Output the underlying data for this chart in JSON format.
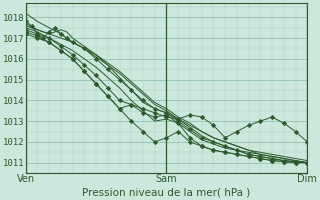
{
  "title": "Pression niveau de la mer( hPa )",
  "bg_color": "#cce8dc",
  "grid_color_major": "#88bbaa",
  "grid_color_minor": "#aaccbb",
  "line_color": "#2d5a2d",
  "marker_color": "#2d5a2d",
  "ylim": [
    1010.5,
    1018.7
  ],
  "xlim": [
    0,
    48
  ],
  "yticks": [
    1011,
    1012,
    1013,
    1014,
    1015,
    1016,
    1017,
    1018
  ],
  "xtick_positions": [
    0,
    24,
    48
  ],
  "xtick_labels": [
    "Ven",
    "Sam",
    "Dim"
  ],
  "series": [
    {
      "pts": [
        [
          0,
          1018.2
        ],
        [
          2,
          1017.8
        ],
        [
          4,
          1017.5
        ],
        [
          6,
          1017.2
        ],
        [
          8,
          1016.8
        ],
        [
          10,
          1016.5
        ],
        [
          12,
          1016.1
        ],
        [
          14,
          1015.7
        ],
        [
          16,
          1015.3
        ],
        [
          18,
          1014.8
        ],
        [
          20,
          1014.3
        ],
        [
          22,
          1013.8
        ],
        [
          24,
          1013.5
        ],
        [
          26,
          1013.1
        ],
        [
          28,
          1012.7
        ],
        [
          30,
          1012.3
        ],
        [
          32,
          1012.0
        ],
        [
          34,
          1011.8
        ],
        [
          36,
          1011.6
        ],
        [
          38,
          1011.4
        ],
        [
          40,
          1011.3
        ],
        [
          42,
          1011.2
        ],
        [
          44,
          1011.1
        ],
        [
          46,
          1011.05
        ],
        [
          48,
          1011.0
        ]
      ],
      "marker": false
    },
    {
      "pts": [
        [
          0,
          1017.7
        ],
        [
          2,
          1017.4
        ],
        [
          4,
          1017.2
        ],
        [
          6,
          1017.0
        ],
        [
          8,
          1016.8
        ],
        [
          10,
          1016.5
        ],
        [
          12,
          1016.2
        ],
        [
          14,
          1015.8
        ],
        [
          16,
          1015.4
        ],
        [
          18,
          1014.9
        ],
        [
          20,
          1014.4
        ],
        [
          22,
          1013.9
        ],
        [
          24,
          1013.6
        ],
        [
          26,
          1013.2
        ],
        [
          28,
          1012.9
        ],
        [
          30,
          1012.5
        ],
        [
          32,
          1012.2
        ],
        [
          34,
          1012.0
        ],
        [
          36,
          1011.8
        ],
        [
          38,
          1011.6
        ],
        [
          40,
          1011.4
        ],
        [
          42,
          1011.3
        ],
        [
          44,
          1011.2
        ],
        [
          46,
          1011.1
        ],
        [
          48,
          1011.0
        ]
      ],
      "marker": false
    },
    {
      "pts": [
        [
          0,
          1017.8
        ],
        [
          1,
          1017.6
        ],
        [
          2,
          1017.2
        ],
        [
          3,
          1017.0
        ],
        [
          4,
          1017.3
        ],
        [
          5,
          1017.5
        ],
        [
          6,
          1017.2
        ],
        [
          7,
          1017.0
        ],
        [
          8,
          1016.8
        ],
        [
          10,
          1016.5
        ],
        [
          12,
          1016.0
        ],
        [
          14,
          1015.5
        ],
        [
          16,
          1015.0
        ],
        [
          18,
          1014.5
        ],
        [
          20,
          1014.0
        ],
        [
          22,
          1013.6
        ],
        [
          24,
          1013.4
        ],
        [
          26,
          1013.0
        ],
        [
          28,
          1012.6
        ],
        [
          30,
          1012.2
        ],
        [
          32,
          1012.0
        ],
        [
          34,
          1011.8
        ],
        [
          36,
          1011.6
        ],
        [
          38,
          1011.4
        ],
        [
          40,
          1011.3
        ],
        [
          42,
          1011.2
        ],
        [
          44,
          1011.1
        ],
        [
          46,
          1011.05
        ],
        [
          48,
          1011.0
        ]
      ],
      "marker": true
    },
    {
      "pts": [
        [
          0,
          1017.6
        ],
        [
          2,
          1017.4
        ],
        [
          4,
          1017.2
        ],
        [
          5,
          1017.3
        ],
        [
          6,
          1017.4
        ],
        [
          7,
          1017.3
        ],
        [
          8,
          1017.0
        ],
        [
          10,
          1016.6
        ],
        [
          12,
          1016.2
        ],
        [
          14,
          1015.7
        ],
        [
          16,
          1015.1
        ],
        [
          18,
          1014.5
        ],
        [
          20,
          1013.9
        ],
        [
          22,
          1013.6
        ],
        [
          24,
          1013.4
        ],
        [
          26,
          1013.1
        ],
        [
          28,
          1012.8
        ],
        [
          30,
          1012.5
        ],
        [
          32,
          1012.2
        ],
        [
          34,
          1012.0
        ],
        [
          36,
          1011.8
        ],
        [
          38,
          1011.6
        ],
        [
          40,
          1011.5
        ],
        [
          42,
          1011.4
        ],
        [
          44,
          1011.3
        ],
        [
          46,
          1011.2
        ],
        [
          48,
          1011.1
        ]
      ],
      "marker": false
    },
    {
      "pts": [
        [
          0,
          1017.5
        ],
        [
          2,
          1017.3
        ],
        [
          4,
          1017.0
        ],
        [
          6,
          1016.7
        ],
        [
          8,
          1016.4
        ],
        [
          10,
          1016.0
        ],
        [
          12,
          1015.6
        ],
        [
          14,
          1015.1
        ],
        [
          16,
          1014.6
        ],
        [
          18,
          1014.0
        ],
        [
          20,
          1013.5
        ],
        [
          22,
          1013.0
        ],
        [
          24,
          1013.1
        ],
        [
          26,
          1012.9
        ],
        [
          28,
          1012.5
        ],
        [
          30,
          1012.1
        ],
        [
          32,
          1011.9
        ],
        [
          34,
          1011.7
        ],
        [
          36,
          1011.6
        ],
        [
          38,
          1011.5
        ],
        [
          40,
          1011.4
        ],
        [
          42,
          1011.3
        ],
        [
          44,
          1011.2
        ],
        [
          46,
          1011.1
        ],
        [
          48,
          1011.0
        ]
      ],
      "marker": false
    },
    {
      "pts": [
        [
          0,
          1017.4
        ],
        [
          2,
          1017.2
        ],
        [
          4,
          1017.0
        ],
        [
          6,
          1016.6
        ],
        [
          8,
          1016.2
        ],
        [
          10,
          1015.7
        ],
        [
          12,
          1015.2
        ],
        [
          14,
          1014.6
        ],
        [
          16,
          1014.0
        ],
        [
          18,
          1013.8
        ],
        [
          20,
          1013.4
        ],
        [
          22,
          1013.2
        ],
        [
          24,
          1013.3
        ],
        [
          26,
          1012.9
        ],
        [
          28,
          1012.2
        ],
        [
          30,
          1011.8
        ],
        [
          32,
          1011.6
        ],
        [
          34,
          1011.5
        ],
        [
          36,
          1011.4
        ],
        [
          38,
          1011.3
        ],
        [
          40,
          1011.2
        ],
        [
          42,
          1011.1
        ],
        [
          44,
          1011.05
        ],
        [
          46,
          1011.0
        ],
        [
          48,
          1011.0
        ]
      ],
      "marker": true
    },
    {
      "pts": [
        [
          0,
          1017.3
        ],
        [
          2,
          1017.1
        ],
        [
          4,
          1016.8
        ],
        [
          6,
          1016.4
        ],
        [
          8,
          1016.0
        ],
        [
          10,
          1015.4
        ],
        [
          12,
          1014.8
        ],
        [
          14,
          1014.2
        ],
        [
          16,
          1013.6
        ],
        [
          18,
          1013.8
        ],
        [
          20,
          1013.6
        ],
        [
          22,
          1013.4
        ],
        [
          24,
          1013.2
        ],
        [
          26,
          1013.1
        ],
        [
          28,
          1013.3
        ],
        [
          30,
          1013.2
        ],
        [
          32,
          1012.8
        ],
        [
          34,
          1012.2
        ],
        [
          36,
          1012.5
        ],
        [
          38,
          1012.8
        ],
        [
          40,
          1013.0
        ],
        [
          42,
          1013.2
        ],
        [
          44,
          1012.9
        ],
        [
          46,
          1012.5
        ],
        [
          48,
          1012.0
        ]
      ],
      "marker": true
    },
    {
      "pts": [
        [
          0,
          1017.2
        ],
        [
          2,
          1017.0
        ],
        [
          4,
          1016.8
        ],
        [
          6,
          1016.4
        ],
        [
          8,
          1016.0
        ],
        [
          10,
          1015.4
        ],
        [
          12,
          1014.8
        ],
        [
          14,
          1014.2
        ],
        [
          16,
          1013.6
        ],
        [
          18,
          1013.0
        ],
        [
          20,
          1012.5
        ],
        [
          22,
          1012.0
        ],
        [
          24,
          1012.2
        ],
        [
          26,
          1012.5
        ],
        [
          28,
          1012.0
        ],
        [
          30,
          1011.8
        ],
        [
          32,
          1011.6
        ],
        [
          34,
          1011.5
        ],
        [
          36,
          1011.4
        ],
        [
          38,
          1011.3
        ],
        [
          40,
          1011.2
        ],
        [
          42,
          1011.1
        ],
        [
          44,
          1011.05
        ],
        [
          46,
          1011.0
        ],
        [
          48,
          1011.0
        ]
      ],
      "marker": true
    }
  ]
}
